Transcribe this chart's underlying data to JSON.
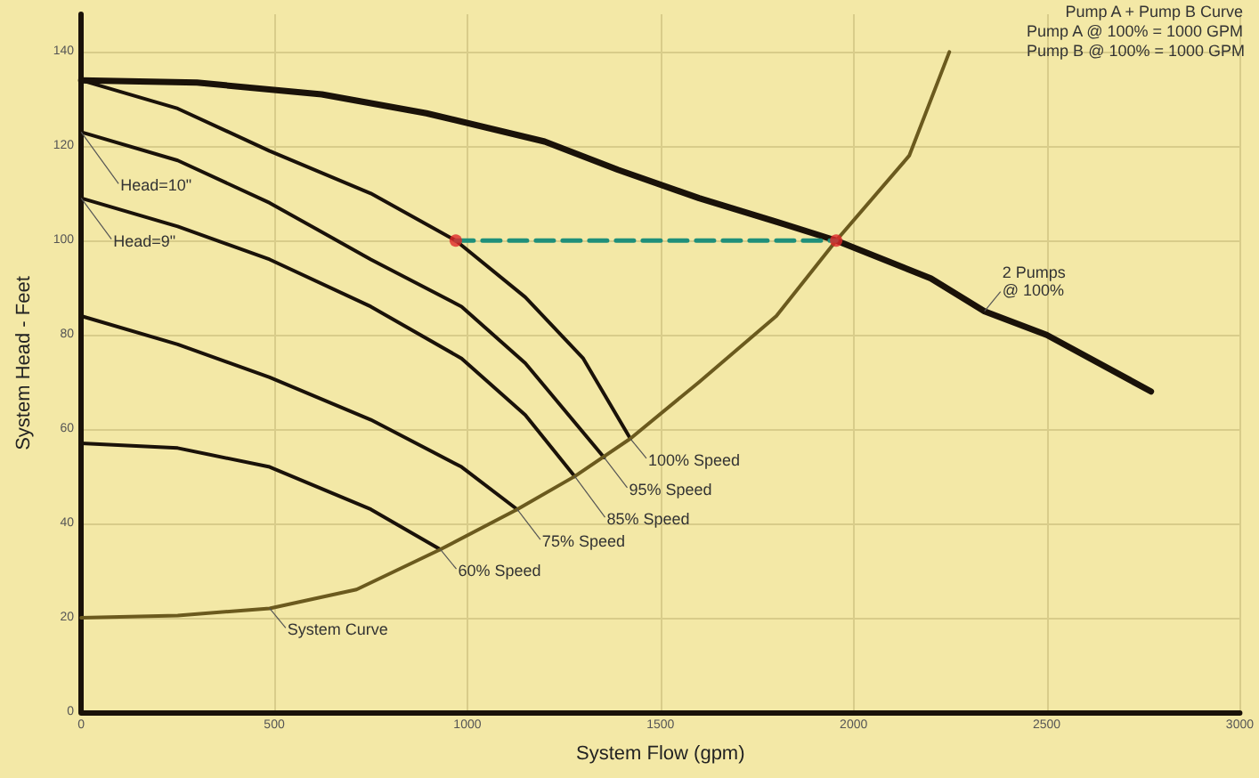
{
  "chart_data": {
    "type": "line",
    "xlabel": "System Flow (gpm)",
    "ylabel": "System Head - Feet",
    "xlim": [
      0,
      3000
    ],
    "xticks": [
      0,
      500,
      1000,
      1500,
      2000,
      2500,
      3000
    ],
    "ylim": [
      0,
      148
    ],
    "yticks": [
      0,
      20,
      40,
      60,
      80,
      100,
      120,
      140
    ],
    "grid": true,
    "marker": "none",
    "series": [
      {
        "color": "#1a1209",
        "x": [
          0,
          300,
          623,
          894,
          1200,
          1390,
          1600,
          1800,
          1955,
          2200,
          2339,
          2500,
          2770
        ],
        "values": [
          134,
          133.5,
          131,
          127,
          121,
          115,
          109,
          104,
          100,
          92,
          85,
          80,
          68
        ]
      },
      {
        "color": "#1a1209",
        "x": [
          0,
          250,
          488,
          750,
          970,
          1150,
          1300,
          1422
        ],
        "values": [
          134,
          128,
          119,
          110,
          100,
          88,
          75,
          58
        ]
      },
      {
        "color": "#1a1209",
        "x": [
          0,
          250,
          488,
          750,
          985,
          1150,
          1354
        ],
        "values": [
          123,
          117,
          108,
          96,
          86,
          74,
          54
        ]
      },
      {
        "color": "#1a1209",
        "x": [
          0,
          250,
          488,
          750,
          985,
          1150,
          1278
        ],
        "values": [
          109,
          103,
          96,
          86,
          75,
          63,
          50
        ]
      },
      {
        "color": "#1a1209",
        "x": [
          0,
          250,
          488,
          750,
          985,
          1129
        ],
        "values": [
          84,
          78,
          71,
          62,
          52,
          43
        ]
      },
      {
        "color": "#1a1209",
        "x": [
          0,
          250,
          488,
          750,
          930
        ],
        "values": [
          57,
          56,
          52,
          43,
          34.5
        ]
      },
      {
        "color": "#6b5a1e",
        "x": [
          0,
          250,
          488,
          713,
          930,
          1129,
          1278,
          1422,
          1600,
          1800,
          1955,
          2144,
          2248
        ],
        "values": [
          20,
          20.5,
          22,
          26,
          34.5,
          43,
          50,
          58,
          70,
          84,
          100,
          118,
          140
        ]
      },
      {
        "color": "#1f8f7a",
        "line_style": "dashed",
        "x": [
          970,
          1955
        ],
        "values": [
          100,
          100
        ]
      },
      {
        "type": "scatter",
        "color": "#e0282a",
        "marker": "circle",
        "x": [
          970,
          1955
        ],
        "values": [
          100,
          100
        ]
      }
    ],
    "annotations": [
      "Pump A + Pump B Curve",
      "Pump A @ 100% = 1000 GPM",
      "Pump B @ 100% = 1000 GPM",
      {
        "text": "Head=10\"",
        "x": 0,
        "y": 123
      },
      {
        "text": "Head=9\"",
        "x": 0,
        "y": 109
      },
      {
        "text": "100% Speed",
        "x": 1422,
        "y": 58
      },
      {
        "text": "95% Speed",
        "x": 1354,
        "y": 54
      },
      {
        "text": "85% Speed",
        "x": 1278,
        "y": 50
      },
      {
        "text": "75% Speed",
        "x": 1129,
        "y": 43
      },
      {
        "text": "60% Speed",
        "x": 930,
        "y": 34.5
      },
      {
        "text": "System Curve",
        "x": 488,
        "y": 22
      },
      {
        "text": "2 Pumps\n@ 100%",
        "x": 2339,
        "y": 85
      }
    ]
  }
}
